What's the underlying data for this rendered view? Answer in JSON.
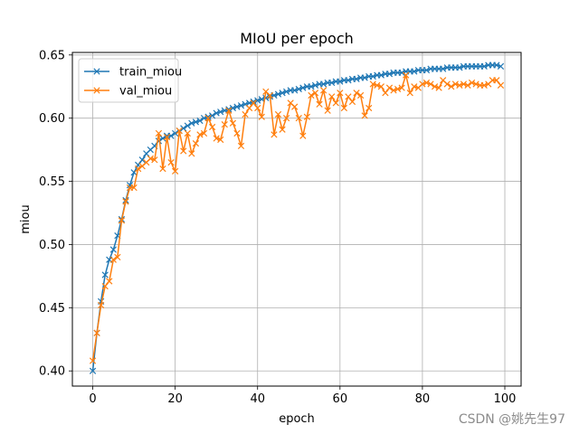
{
  "chart_data": {
    "type": "line",
    "title": "MIoU per epoch",
    "xlabel": "epoch",
    "ylabel": "miou",
    "xlim": [
      -4.95,
      103.95
    ],
    "ylim": [
      0.388,
      0.652
    ],
    "xticks": [
      0,
      20,
      40,
      60,
      80,
      100
    ],
    "yticks": [
      0.4,
      0.45,
      0.5,
      0.55,
      0.6,
      0.65
    ],
    "ytick_labels": [
      "0.40",
      "0.45",
      "0.50",
      "0.55",
      "0.60",
      "0.65"
    ],
    "grid": true,
    "legend_position": "upper-left",
    "marker": "x",
    "series": [
      {
        "name": "train_miou",
        "color": "#1f77b4",
        "x": [
          0,
          1,
          2,
          3,
          4,
          5,
          6,
          7,
          8,
          9,
          10,
          11,
          12,
          13,
          14,
          15,
          16,
          17,
          18,
          19,
          20,
          21,
          22,
          23,
          24,
          25,
          26,
          27,
          28,
          29,
          30,
          31,
          32,
          33,
          34,
          35,
          36,
          37,
          38,
          39,
          40,
          41,
          42,
          43,
          44,
          45,
          46,
          47,
          48,
          49,
          50,
          51,
          52,
          53,
          54,
          55,
          56,
          57,
          58,
          59,
          60,
          61,
          62,
          63,
          64,
          65,
          66,
          67,
          68,
          69,
          70,
          71,
          72,
          73,
          74,
          75,
          76,
          77,
          78,
          79,
          80,
          81,
          82,
          83,
          84,
          85,
          86,
          87,
          88,
          89,
          90,
          91,
          92,
          93,
          94,
          95,
          96,
          97,
          98,
          99
        ],
        "values": [
          0.4,
          0.43,
          0.455,
          0.476,
          0.488,
          0.496,
          0.507,
          0.52,
          0.535,
          0.547,
          0.557,
          0.563,
          0.567,
          0.572,
          0.575,
          0.578,
          0.582,
          0.584,
          0.586,
          0.586,
          0.588,
          0.59,
          0.592,
          0.594,
          0.596,
          0.597,
          0.598,
          0.6,
          0.601,
          0.602,
          0.604,
          0.605,
          0.606,
          0.607,
          0.608,
          0.609,
          0.61,
          0.611,
          0.612,
          0.613,
          0.614,
          0.615,
          0.616,
          0.617,
          0.618,
          0.619,
          0.62,
          0.621,
          0.622,
          0.622,
          0.623,
          0.624,
          0.625,
          0.625,
          0.626,
          0.627,
          0.627,
          0.628,
          0.628,
          0.629,
          0.629,
          0.63,
          0.63,
          0.631,
          0.631,
          0.632,
          0.632,
          0.633,
          0.633,
          0.634,
          0.634,
          0.635,
          0.635,
          0.636,
          0.636,
          0.636,
          0.637,
          0.637,
          0.637,
          0.638,
          0.638,
          0.638,
          0.639,
          0.639,
          0.639,
          0.639,
          0.64,
          0.64,
          0.64,
          0.64,
          0.641,
          0.641,
          0.641,
          0.641,
          0.641,
          0.641,
          0.642,
          0.642,
          0.642,
          0.641
        ]
      },
      {
        "name": "val_miou",
        "color": "#ff7f0e",
        "x": [
          0,
          1,
          2,
          3,
          4,
          5,
          6,
          7,
          8,
          9,
          10,
          11,
          12,
          13,
          14,
          15,
          16,
          17,
          18,
          19,
          20,
          21,
          22,
          23,
          24,
          25,
          26,
          27,
          28,
          29,
          30,
          31,
          32,
          33,
          34,
          35,
          36,
          37,
          38,
          39,
          40,
          41,
          42,
          43,
          44,
          45,
          46,
          47,
          48,
          49,
          50,
          51,
          52,
          53,
          54,
          55,
          56,
          57,
          58,
          59,
          60,
          61,
          62,
          63,
          64,
          65,
          66,
          67,
          68,
          69,
          70,
          71,
          72,
          73,
          74,
          75,
          76,
          77,
          78,
          79,
          80,
          81,
          82,
          83,
          84,
          85,
          86,
          87,
          88,
          89,
          90,
          91,
          92,
          93,
          94,
          95,
          96,
          97,
          98,
          99
        ],
        "values": [
          0.408,
          0.43,
          0.452,
          0.467,
          0.471,
          0.488,
          0.49,
          0.519,
          0.534,
          0.545,
          0.545,
          0.56,
          0.562,
          0.565,
          0.568,
          0.567,
          0.588,
          0.56,
          0.585,
          0.565,
          0.558,
          0.59,
          0.574,
          0.588,
          0.572,
          0.58,
          0.587,
          0.588,
          0.6,
          0.593,
          0.584,
          0.583,
          0.595,
          0.606,
          0.596,
          0.588,
          0.578,
          0.603,
          0.608,
          0.612,
          0.608,
          0.601,
          0.621,
          0.618,
          0.587,
          0.603,
          0.591,
          0.6,
          0.612,
          0.609,
          0.6,
          0.586,
          0.601,
          0.618,
          0.62,
          0.611,
          0.622,
          0.606,
          0.617,
          0.612,
          0.62,
          0.608,
          0.617,
          0.613,
          0.62,
          0.618,
          0.602,
          0.608,
          0.627,
          0.626,
          0.625,
          0.62,
          0.624,
          0.622,
          0.623,
          0.624,
          0.634,
          0.62,
          0.625,
          0.624,
          0.627,
          0.628,
          0.627,
          0.625,
          0.624,
          0.63,
          0.627,
          0.625,
          0.627,
          0.626,
          0.627,
          0.626,
          0.628,
          0.627,
          0.626,
          0.626,
          0.627,
          0.63,
          0.63,
          0.626
        ]
      }
    ]
  },
  "watermark": "CSDN @姚先生97"
}
